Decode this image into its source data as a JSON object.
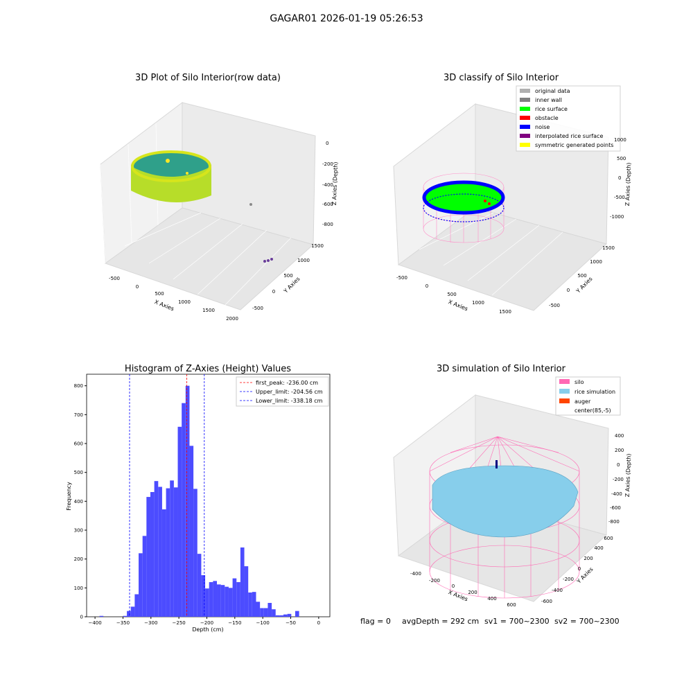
{
  "suptitle": "GAGAR01 2026-01-19 05:26:53",
  "panels": {
    "raw": {
      "title": "3D Plot of Silo Interior(row data)",
      "x_label": "X Axies",
      "y_label": "Y Axies",
      "z_label": "Z Axies (Depth)",
      "x_ticks": [
        "-500",
        "0",
        "500",
        "1000",
        "1500",
        "2000"
      ],
      "y_ticks": [
        "-500",
        "0",
        "500",
        "1000",
        "1500"
      ],
      "z_ticks": [
        "0",
        "-200",
        "-400",
        "-600",
        "-800"
      ]
    },
    "classify": {
      "title": "3D classify of Silo Interior",
      "x_label": "X Axies",
      "y_label": "Y Axies",
      "z_label": "Z Axies (Depth)",
      "x_ticks": [
        "-500",
        "0",
        "500",
        "1000",
        "1500"
      ],
      "y_ticks": [
        "-500",
        "0",
        "500",
        "1000",
        "1500"
      ],
      "z_ticks": [
        "1000",
        "500",
        "0",
        "-500",
        "-1000"
      ],
      "legend": [
        {
          "label": "original data",
          "color": "#b0b0b0"
        },
        {
          "label": "inner wall",
          "color": "#808080"
        },
        {
          "label": "rice surface",
          "color": "#00ff00"
        },
        {
          "label": "obstacle",
          "color": "#ff0000"
        },
        {
          "label": "noise",
          "color": "#0000ff"
        },
        {
          "label": "interpolated rice surface",
          "color": "#800080"
        },
        {
          "label": "symmetric generated points",
          "color": "#ffff00"
        }
      ]
    },
    "simulation": {
      "title": "3D simulation of Silo Interior",
      "x_label": "X Axies",
      "y_label": "Y Axies",
      "z_label": "Z Axies (Depth)",
      "x_ticks": [
        "-400",
        "-200",
        "0",
        "200",
        "400",
        "600"
      ],
      "y_ticks": [
        "-600",
        "-400",
        "-200",
        "0",
        "200",
        "400",
        "600"
      ],
      "z_ticks": [
        "400",
        "200",
        "0",
        "-200",
        "-400",
        "-600",
        "-800"
      ],
      "legend": [
        {
          "label": "silo",
          "color": "#ff69b4"
        },
        {
          "label": "rice simulation",
          "color": "#87ceeb"
        },
        {
          "label": "auger",
          "color": "#ff4500"
        },
        {
          "label": "center(85,-5)",
          "color": "none"
        }
      ]
    }
  },
  "chart_data": {
    "type": "bar",
    "title": "Histogram of Z-Axies (Height) Values",
    "xlabel": "Depth (cm)",
    "ylabel": "Frequency",
    "xlim": [
      -415,
      20
    ],
    "ylim": [
      0,
      840
    ],
    "x_ticks": [
      -400,
      -350,
      -300,
      -250,
      -200,
      -150,
      -100,
      -50,
      0
    ],
    "y_ticks": [
      0,
      100,
      200,
      300,
      400,
      500,
      600,
      700,
      800
    ],
    "bin_width": 7,
    "bin_edges_start": -392,
    "values": [
      3,
      0,
      0,
      0,
      0,
      0,
      3,
      20,
      35,
      78,
      220,
      280,
      415,
      432,
      470,
      450,
      372,
      445,
      472,
      448,
      658,
      740,
      800,
      592,
      443,
      218,
      144,
      98,
      120,
      124,
      112,
      110,
      104,
      100,
      133,
      120,
      240,
      175,
      84,
      86,
      52,
      30,
      30,
      48,
      26,
      5,
      5,
      8,
      10,
      0,
      20
    ],
    "color": "#4c4cff",
    "reference_lines": [
      {
        "label": "first_peak: -236.00 cm",
        "x": -236.0,
        "color": "#ff0000"
      },
      {
        "label": "Upper_limit: -204.56 cm",
        "x": -204.56,
        "color": "#0000ff"
      },
      {
        "label": "Lower_limit: -338.18 cm",
        "x": -338.18,
        "color": "#0000ff"
      }
    ],
    "legend_position": "upper right"
  },
  "footer": {
    "flag": "flag = 0",
    "avg": "avgDepth = 292 cm",
    "sv1": "sv1 = 700~2300",
    "sv2": "sv2 = 700~2300"
  }
}
